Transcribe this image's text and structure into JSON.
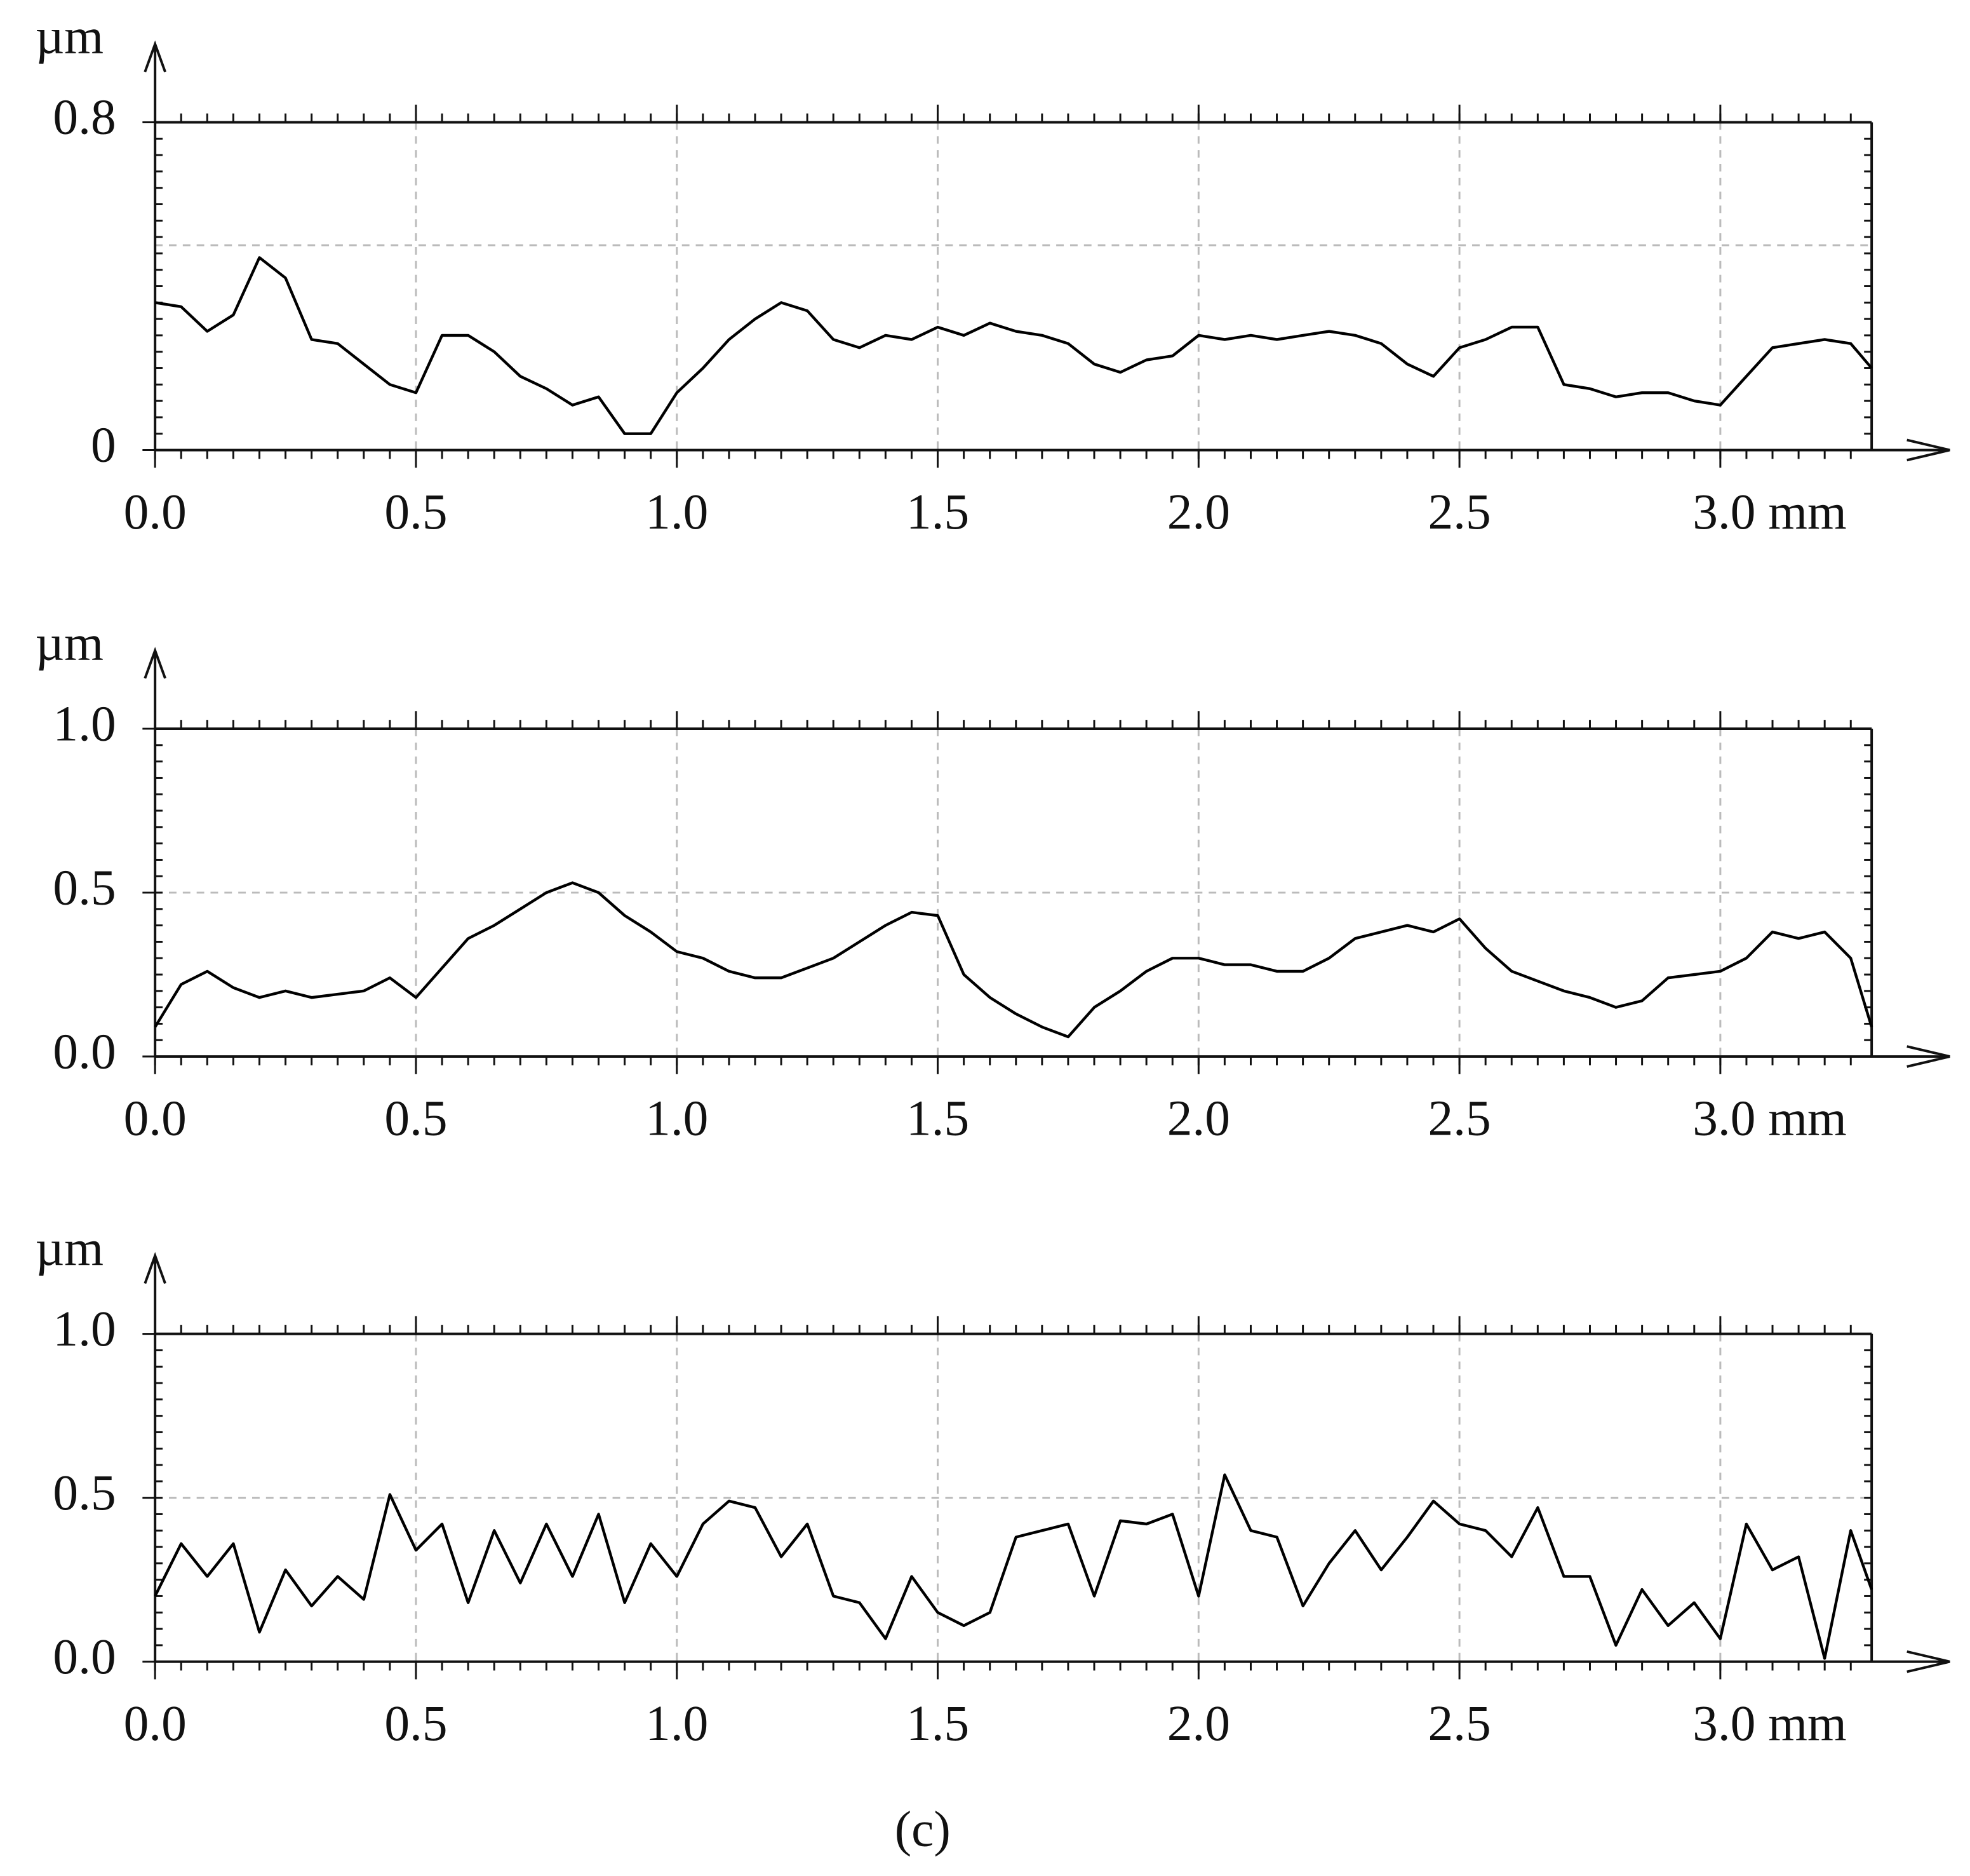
{
  "chart_data": [
    {
      "type": "line",
      "y_label": "µm",
      "x": [
        0,
        0.05,
        0.1,
        0.15,
        0.2,
        0.25,
        0.3,
        0.35,
        0.4,
        0.45,
        0.5,
        0.55,
        0.6,
        0.65,
        0.7,
        0.75,
        0.8,
        0.85,
        0.9,
        0.95,
        1.0,
        1.05,
        1.1,
        1.15,
        1.2,
        1.25,
        1.3,
        1.35,
        1.4,
        1.45,
        1.5,
        1.55,
        1.6,
        1.65,
        1.7,
        1.75,
        1.8,
        1.85,
        1.9,
        1.95,
        2.0,
        2.05,
        2.1,
        2.15,
        2.2,
        2.25,
        2.3,
        2.35,
        2.4,
        2.45,
        2.5,
        2.55,
        2.6,
        2.65,
        2.7,
        2.75,
        2.8,
        2.85,
        2.9,
        2.95,
        3.0,
        3.05,
        3.1,
        3.15,
        3.2,
        3.25,
        3.29
      ],
      "series": [
        {
          "color": "#000000",
          "values": [
            0.36,
            0.35,
            0.29,
            0.33,
            0.47,
            0.42,
            0.27,
            0.26,
            0.21,
            0.16,
            0.14,
            0.28,
            0.28,
            0.24,
            0.18,
            0.15,
            0.11,
            0.13,
            0.04,
            0.04,
            0.14,
            0.2,
            0.27,
            0.32,
            0.36,
            0.34,
            0.27,
            0.25,
            0.28,
            0.27,
            0.3,
            0.28,
            0.31,
            0.29,
            0.28,
            0.26,
            0.21,
            0.19,
            0.22,
            0.23,
            0.28,
            0.27,
            0.28,
            0.27,
            0.28,
            0.29,
            0.28,
            0.26,
            0.21,
            0.18,
            0.25,
            0.27,
            0.3,
            0.3,
            0.16,
            0.15,
            0.13,
            0.14,
            0.14,
            0.12,
            0.11,
            0.18,
            0.25,
            0.26,
            0.27,
            0.26,
            0.2
          ]
        }
      ],
      "xlim": [
        0,
        3.29
      ],
      "ylim": [
        0,
        0.8
      ],
      "xticks": [
        {
          "value": 0,
          "label": "0.0"
        },
        0.5,
        {
          "value": 1.0,
          "label": "1.0"
        },
        1.5,
        {
          "value": 2.0,
          "label": "2.0"
        },
        2.5,
        {
          "value": 3.0,
          "label": "3.0 mm"
        }
      ],
      "yticks": [
        0,
        0.8
      ],
      "ygrid": [
        0.5
      ],
      "grid": true
    },
    {
      "type": "line",
      "y_label": "µm",
      "x": [
        0,
        0.05,
        0.1,
        0.15,
        0.2,
        0.25,
        0.3,
        0.35,
        0.4,
        0.45,
        0.5,
        0.55,
        0.6,
        0.65,
        0.7,
        0.75,
        0.8,
        0.85,
        0.9,
        0.95,
        1.0,
        1.05,
        1.1,
        1.15,
        1.2,
        1.25,
        1.3,
        1.35,
        1.4,
        1.45,
        1.5,
        1.55,
        1.6,
        1.65,
        1.7,
        1.75,
        1.8,
        1.85,
        1.9,
        1.95,
        2.0,
        2.05,
        2.1,
        2.15,
        2.2,
        2.25,
        2.3,
        2.35,
        2.4,
        2.45,
        2.5,
        2.55,
        2.6,
        2.65,
        2.7,
        2.75,
        2.8,
        2.85,
        2.9,
        2.95,
        3.0,
        3.05,
        3.1,
        3.15,
        3.2,
        3.25,
        3.29
      ],
      "series": [
        {
          "color": "#000000",
          "values": [
            0.09,
            0.22,
            0.26,
            0.21,
            0.18,
            0.2,
            0.18,
            0.19,
            0.2,
            0.24,
            0.18,
            0.27,
            0.36,
            0.4,
            0.45,
            0.5,
            0.53,
            0.5,
            0.43,
            0.38,
            0.32,
            0.3,
            0.26,
            0.24,
            0.24,
            0.27,
            0.3,
            0.35,
            0.4,
            0.44,
            0.43,
            0.25,
            0.18,
            0.13,
            0.09,
            0.06,
            0.15,
            0.2,
            0.26,
            0.3,
            0.3,
            0.28,
            0.28,
            0.26,
            0.26,
            0.3,
            0.36,
            0.38,
            0.4,
            0.38,
            0.42,
            0.33,
            0.26,
            0.23,
            0.2,
            0.18,
            0.15,
            0.17,
            0.24,
            0.25,
            0.26,
            0.3,
            0.38,
            0.36,
            0.38,
            0.3,
            0.09
          ]
        }
      ],
      "xlim": [
        0,
        3.29
      ],
      "ylim": [
        0,
        1.0
      ],
      "xticks": [
        {
          "value": 0,
          "label": "0.0"
        },
        0.5,
        {
          "value": 1.0,
          "label": "1.0"
        },
        1.5,
        {
          "value": 2.0,
          "label": "2.0"
        },
        2.5,
        {
          "value": 3.0,
          "label": "3.0 mm"
        }
      ],
      "yticks": [
        {
          "value": 0,
          "label": "0.0"
        },
        0.5,
        {
          "value": 1.0,
          "label": "1.0"
        }
      ],
      "grid": true
    },
    {
      "type": "line",
      "y_label": "µm",
      "x": [
        0,
        0.05,
        0.1,
        0.15,
        0.2,
        0.25,
        0.3,
        0.35,
        0.4,
        0.45,
        0.5,
        0.55,
        0.6,
        0.65,
        0.7,
        0.75,
        0.8,
        0.85,
        0.9,
        0.95,
        1.0,
        1.05,
        1.1,
        1.15,
        1.2,
        1.25,
        1.3,
        1.35,
        1.4,
        1.45,
        1.5,
        1.55,
        1.6,
        1.65,
        1.7,
        1.75,
        1.8,
        1.85,
        1.9,
        1.95,
        2.0,
        2.05,
        2.1,
        2.15,
        2.2,
        2.25,
        2.3,
        2.35,
        2.4,
        2.45,
        2.5,
        2.55,
        2.6,
        2.65,
        2.7,
        2.75,
        2.8,
        2.85,
        2.9,
        2.95,
        3.0,
        3.05,
        3.1,
        3.15,
        3.2,
        3.25,
        3.29
      ],
      "series": [
        {
          "color": "#000000",
          "values": [
            0.2,
            0.36,
            0.26,
            0.36,
            0.09,
            0.28,
            0.17,
            0.26,
            0.19,
            0.51,
            0.34,
            0.42,
            0.18,
            0.4,
            0.24,
            0.42,
            0.26,
            0.45,
            0.18,
            0.36,
            0.26,
            0.42,
            0.49,
            0.47,
            0.32,
            0.42,
            0.2,
            0.18,
            0.07,
            0.26,
            0.15,
            0.11,
            0.15,
            0.38,
            0.4,
            0.42,
            0.2,
            0.43,
            0.42,
            0.45,
            0.2,
            0.57,
            0.4,
            0.38,
            0.17,
            0.3,
            0.4,
            0.28,
            0.38,
            0.49,
            0.42,
            0.4,
            0.32,
            0.47,
            0.26,
            0.26,
            0.05,
            0.22,
            0.11,
            0.18,
            0.07,
            0.42,
            0.28,
            0.32,
            0.01,
            0.4,
            0.22
          ]
        }
      ],
      "xlim": [
        0,
        3.29
      ],
      "ylim": [
        0,
        1.0
      ],
      "xticks": [
        {
          "value": 0,
          "label": "0.0"
        },
        0.5,
        {
          "value": 1.0,
          "label": "1.0"
        },
        1.5,
        {
          "value": 2.0,
          "label": "2.0"
        },
        2.5,
        {
          "value": 3.0,
          "label": "3.0 mm"
        }
      ],
      "yticks": [
        {
          "value": 0,
          "label": "0.0"
        },
        0.5,
        {
          "value": 1.0,
          "label": "1.0"
        }
      ],
      "grid": true
    }
  ],
  "caption": "(c)"
}
